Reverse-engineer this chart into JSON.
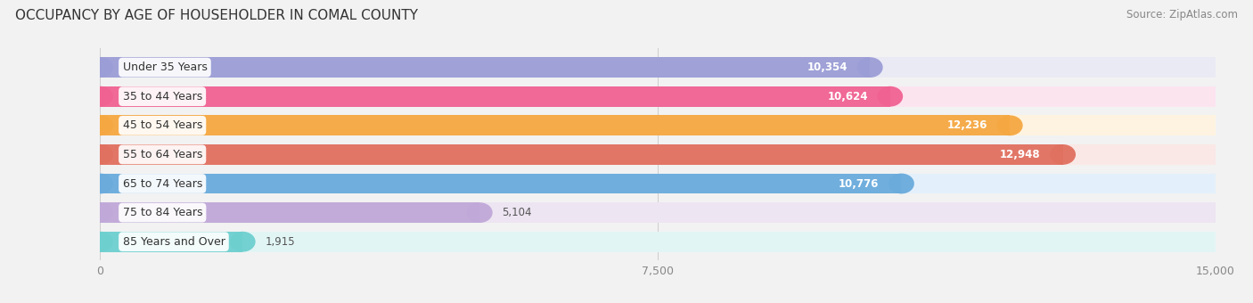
{
  "title": "OCCUPANCY BY AGE OF HOUSEHOLDER IN COMAL COUNTY",
  "source": "Source: ZipAtlas.com",
  "categories": [
    "Under 35 Years",
    "35 to 44 Years",
    "45 to 54 Years",
    "55 to 64 Years",
    "65 to 74 Years",
    "75 to 84 Years",
    "85 Years and Over"
  ],
  "values": [
    10354,
    10624,
    12236,
    12948,
    10776,
    5104,
    1915
  ],
  "bar_colors": [
    "#9b9dd6",
    "#f06292",
    "#f5a742",
    "#e07060",
    "#6aabdc",
    "#c0a8d8",
    "#6ecfcf"
  ],
  "bar_bg_colors": [
    "#eaeaf5",
    "#fce4ef",
    "#fef3e0",
    "#fae8e6",
    "#e3f0fb",
    "#ede5f2",
    "#e2f5f5"
  ],
  "xlim": [
    0,
    15000
  ],
  "xticks": [
    0,
    7500,
    15000
  ],
  "xtick_labels": [
    "0",
    "7,500",
    "15,000"
  ],
  "title_fontsize": 11,
  "label_fontsize": 9,
  "value_fontsize": 8.5,
  "background_color": "#f2f2f2"
}
